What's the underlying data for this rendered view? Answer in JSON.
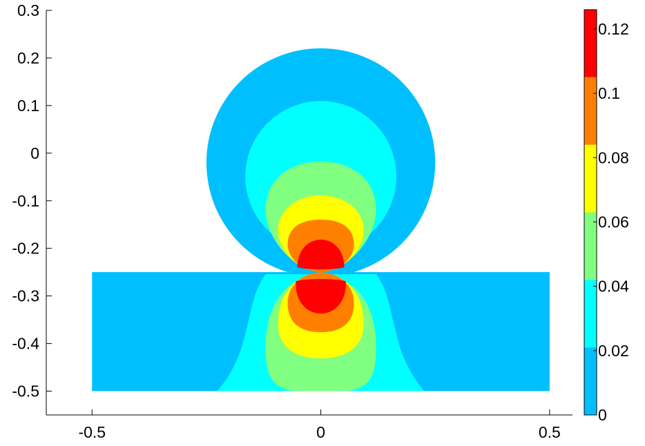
{
  "chart_data": {
    "type": "heatmap",
    "title": "",
    "xlabel": "",
    "ylabel": "",
    "xlim": [
      -0.6,
      0.55
    ],
    "ylim": [
      -0.55,
      0.3
    ],
    "xticks": [
      {
        "value": -0.5,
        "label": "-0.5"
      },
      {
        "value": 0,
        "label": "0"
      },
      {
        "value": 0.5,
        "label": "0.5"
      }
    ],
    "yticks": [
      {
        "value": 0.3,
        "label": "0.3"
      },
      {
        "value": 0.2,
        "label": "0.2"
      },
      {
        "value": 0.1,
        "label": "0.1"
      },
      {
        "value": 0,
        "label": "0"
      },
      {
        "value": -0.1,
        "label": "-0.1"
      },
      {
        "value": -0.2,
        "label": "-0.2"
      },
      {
        "value": -0.3,
        "label": "-0.3"
      },
      {
        "value": -0.4,
        "label": "-0.4"
      },
      {
        "value": -0.5,
        "label": "-0.5"
      }
    ],
    "grid": false,
    "domain": {
      "substrate": {
        "xmin": -0.5,
        "xmax": 0.5,
        "ymin": -0.5,
        "ymax": -0.25
      },
      "sphere": {
        "cx": 0,
        "cy": -0.02,
        "r": 0.25
      }
    },
    "field_peak": {
      "x": 0,
      "y": -0.25
    },
    "colorbar": {
      "min": 0,
      "max": 0.126,
      "levels": [
        0,
        0.021,
        0.042,
        0.063,
        0.084,
        0.105,
        0.126
      ],
      "colors": [
        "#00bfff",
        "#00ffff",
        "#80ff80",
        "#ffff00",
        "#ff8000",
        "#ff0000"
      ],
      "ticks": [
        {
          "value": 0,
          "label": "0"
        },
        {
          "value": 0.02,
          "label": "0.02"
        },
        {
          "value": 0.04,
          "label": "0.04"
        },
        {
          "value": 0.06,
          "label": "0.06"
        },
        {
          "value": 0.08,
          "label": "0.08"
        },
        {
          "value": 0.1,
          "label": "0.1"
        },
        {
          "value": 0.12,
          "label": "0.12"
        }
      ]
    }
  }
}
